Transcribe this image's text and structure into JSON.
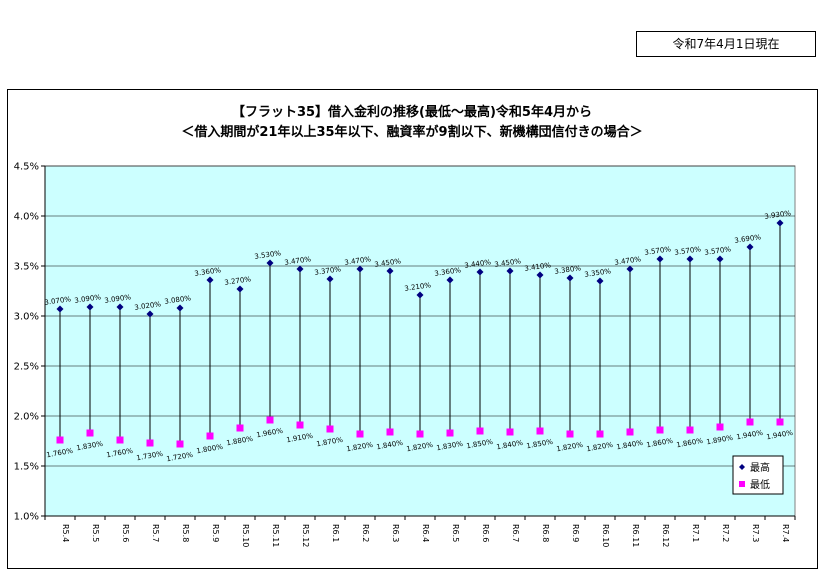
{
  "as_of_label": "令和7年4月1日現在",
  "chart_data": {
    "type": "scatter",
    "title_line1": "【フラット35】借入金利の推移(最低～最高)令和5年4月から",
    "title_line2": "＜借入期間が21年以上35年以下、融資率が9割以下、新機構団信付きの場合＞",
    "categories": [
      "R5.4",
      "R5.5",
      "R5.6",
      "R5.7",
      "R5.8",
      "R5.9",
      "R5.10",
      "R5.11",
      "R5.12",
      "R6.1",
      "R6.2",
      "R6.3",
      "R6.4",
      "R6.5",
      "R6.6",
      "R6.7",
      "R6.8",
      "R6.9",
      "R6.10",
      "R6.11",
      "R6.12",
      "R7.1",
      "R7.2",
      "R7.3",
      "R7.4"
    ],
    "ylim": [
      1.0,
      4.5
    ],
    "yticks": [
      "1.0%",
      "1.5%",
      "2.0%",
      "2.5%",
      "3.0%",
      "3.5%",
      "4.0%",
      "4.5%"
    ],
    "plot_bg": "#ccffff",
    "series": [
      {
        "name": "最高",
        "color": "#000080",
        "marker": "diamond",
        "values": [
          3.07,
          3.09,
          3.09,
          3.02,
          3.08,
          3.36,
          3.27,
          3.53,
          3.47,
          3.37,
          3.47,
          3.45,
          3.21,
          3.36,
          3.44,
          3.45,
          3.41,
          3.38,
          3.35,
          3.47,
          3.57,
          3.57,
          3.57,
          3.69,
          3.93
        ],
        "labels": [
          "3.070%",
          "3.090%",
          "3.090%",
          "3.020%",
          "3.080%",
          "3.360%",
          "3.270%",
          "3.530%",
          "3.470%",
          "3.370%",
          "3.470%",
          "3.450%",
          "3.210%",
          "3.360%",
          "3.440%",
          "3.450%",
          "3.410%",
          "3.380%",
          "3.350%",
          "3.470%",
          "3.570%",
          "3.570%",
          "3.570%",
          "3.690%",
          "3.930%"
        ]
      },
      {
        "name": "最低",
        "color": "#ff00ff",
        "marker": "square",
        "values": [
          1.76,
          1.83,
          1.76,
          1.73,
          1.72,
          1.8,
          1.88,
          1.96,
          1.91,
          1.87,
          1.82,
          1.84,
          1.82,
          1.83,
          1.85,
          1.84,
          1.85,
          1.82,
          1.82,
          1.84,
          1.86,
          1.86,
          1.89,
          1.94,
          1.94
        ],
        "labels": [
          "1.760%",
          "1.830%",
          "1.760%",
          "1.730%",
          "1.720%",
          "1.800%",
          "1.880%",
          "1.960%",
          "1.910%",
          "1.870%",
          "1.820%",
          "1.840%",
          "1.820%",
          "1.830%",
          "1.850%",
          "1.840%",
          "1.850%",
          "1.820%",
          "1.820%",
          "1.840%",
          "1.860%",
          "1.860%",
          "1.890%",
          "1.940%",
          "1.940%"
        ]
      }
    ],
    "legend_position": "bottom-right"
  }
}
